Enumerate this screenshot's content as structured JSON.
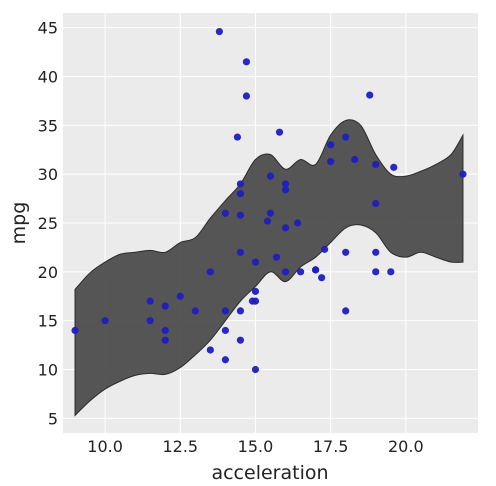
{
  "chart_data": {
    "type": "scatter",
    "xlabel": "acceleration",
    "ylabel": "mpg",
    "xlim": [
      8.6,
      22.4
    ],
    "ylim": [
      3.5,
      46.5
    ],
    "xticks": [
      10.0,
      12.5,
      15.0,
      17.5,
      20.0
    ],
    "xtick_labels": [
      "10.0",
      "12.5",
      "15.0",
      "17.5",
      "20.0"
    ],
    "yticks": [
      5,
      10,
      15,
      20,
      25,
      30,
      35,
      40,
      45
    ],
    "ytick_labels": [
      "5",
      "10",
      "15",
      "20",
      "25",
      "30",
      "35",
      "40",
      "45"
    ],
    "grid": true,
    "colors": {
      "background": "#ebebeb",
      "grid": "#ffffff",
      "points": "#1f1fbf",
      "band_fill": "#4d4d4d",
      "band_edge": "#2a2a2a"
    },
    "band": {
      "x": [
        9.0,
        9.5,
        10.0,
        10.5,
        11.0,
        11.5,
        12.0,
        12.5,
        13.0,
        13.5,
        14.0,
        14.5,
        15.0,
        15.5,
        16.0,
        16.5,
        17.0,
        17.5,
        18.0,
        18.5,
        19.0,
        19.5,
        20.0,
        20.5,
        21.0,
        21.5,
        21.9
      ],
      "upper": [
        18.2,
        19.9,
        21.0,
        21.8,
        22.0,
        22.2,
        22.0,
        23.0,
        23.5,
        25.5,
        27.3,
        29.0,
        31.5,
        32.0,
        30.5,
        31.5,
        31.0,
        34.0,
        35.5,
        35.0,
        32.0,
        30.0,
        29.8,
        30.3,
        31.0,
        32.0,
        34.0
      ],
      "lower": [
        5.3,
        6.8,
        8.0,
        8.8,
        9.4,
        9.6,
        9.5,
        10.2,
        11.5,
        13.0,
        15.0,
        17.0,
        18.5,
        20.0,
        19.0,
        20.5,
        21.5,
        23.0,
        24.5,
        24.8,
        24.0,
        22.0,
        21.5,
        22.0,
        21.5,
        21.0,
        21.0
      ]
    },
    "series": [
      {
        "x": [
          9.0,
          10.0,
          11.5,
          11.5,
          12.0,
          12.0,
          12.0,
          12.5,
          13.0,
          13.5,
          13.5,
          13.8,
          14.0,
          14.0,
          14.0,
          14.0,
          14.4,
          14.5,
          14.5,
          14.5,
          14.5,
          14.5,
          14.5,
          14.7,
          14.7,
          14.9,
          15.0,
          15.0,
          15.0,
          15.0,
          15.4,
          15.5,
          15.5,
          15.7,
          15.8,
          16.0,
          16.0,
          16.0,
          16.0,
          16.4,
          16.5,
          17.0,
          17.0,
          17.2,
          17.3,
          17.5,
          17.5,
          18.0,
          18.0,
          18.0,
          18.3,
          18.8,
          19.0,
          19.0,
          19.0,
          19.0,
          19.5,
          19.6,
          21.9
        ],
        "y": [
          14,
          15,
          17,
          15,
          16.5,
          14,
          13,
          17.5,
          16,
          20,
          12,
          44.6,
          26,
          16,
          14,
          11,
          33.8,
          29,
          28,
          22,
          16,
          13,
          25.8,
          41.5,
          38,
          17,
          21,
          18,
          10,
          17,
          25.2,
          29.8,
          26,
          21.5,
          34.3,
          29,
          28.4,
          24.5,
          20,
          25,
          20,
          20.2,
          20.2,
          19.4,
          22.3,
          33,
          31.3,
          33.8,
          22,
          16,
          31.5,
          38.1,
          31,
          27,
          22,
          20,
          20,
          30.7,
          30
        ]
      }
    ]
  }
}
